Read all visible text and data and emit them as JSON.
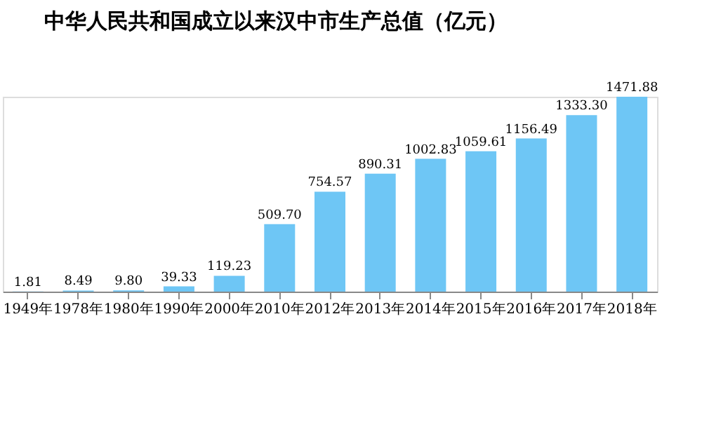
{
  "chart_data": {
    "type": "bar",
    "title": "中华人民共和国成立以来汉中市生产总值（亿元）",
    "categories": [
      "1949年",
      "1978年",
      "1980年",
      "1990年",
      "2000年",
      "2010年",
      "2012年",
      "2013年",
      "2014年",
      "2015年",
      "2016年",
      "2017年",
      "2018年"
    ],
    "values": [
      1.81,
      8.49,
      9.8,
      39.33,
      119.23,
      509.7,
      754.57,
      890.31,
      1002.83,
      1059.61,
      1156.49,
      1333.3,
      1471.88
    ],
    "value_labels": [
      "1.81",
      "8.49",
      "9.80",
      "39.33",
      "119.23",
      "509.70",
      "754.57",
      "890.31",
      "1002.83",
      "1059.61",
      "1156.49",
      "1333.30",
      "1471.88"
    ],
    "color": "#6ec6f5",
    "grid": false
  }
}
